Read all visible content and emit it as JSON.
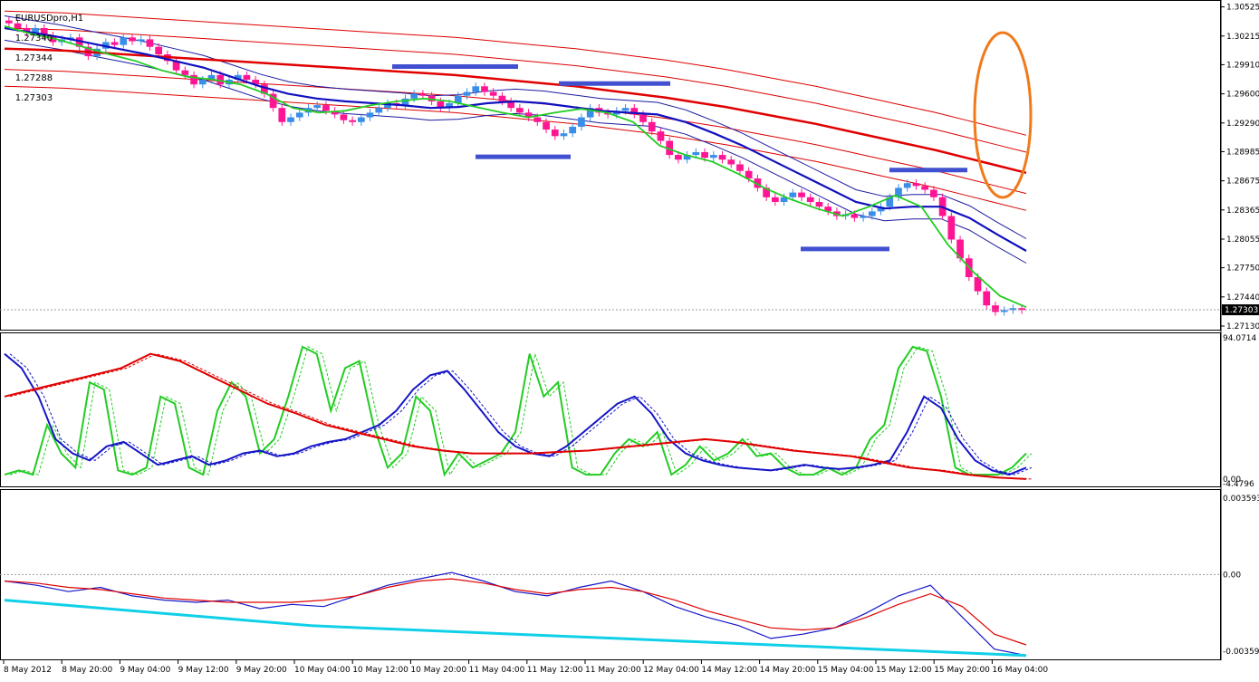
{
  "ohlc_header": {
    "symbol": "EURUSDpro,H1",
    "open": "1.27340",
    "high": "1.27344",
    "low": "1.27288",
    "close": "1.27303"
  },
  "colors": {
    "bull_candle": "#3a8ee8",
    "bear_candle": "#ff1493",
    "ema_fast": "#22cc22",
    "ema_mid": "#1010c0",
    "ema_slow": "#e00000",
    "envelope": "#dd0000",
    "bollinger": "#1a1aa0",
    "level_line": "#4050d0",
    "highlight_ellipse": "#f07a1a",
    "stoch_main": "#22cc22",
    "stoch_mid": "#1515c8",
    "stoch_slow": "#e00000",
    "macd_red": "#e00000",
    "macd_blue": "#1515c8",
    "macd_cyan": "#10d0e8"
  },
  "chart_data": [
    {
      "type": "line",
      "title": "",
      "ylim": [
        1.2713,
        1.3055
      ],
      "y_ticks": [
        "1.30525",
        "1.30215",
        "1.29910",
        "1.29600",
        "1.29290",
        "1.28985",
        "1.28675",
        "1.28365",
        "1.28055",
        "1.27750",
        "1.27440",
        "1.27130"
      ],
      "current_price_label": "1.27303",
      "x_tick_labels": [
        "8 May 2012",
        "8 May 20:00",
        "9 May 04:00",
        "9 May 12:00",
        "9 May 20:00",
        "10 May 04:00",
        "10 May 12:00",
        "10 May 20:00",
        "11 May 04:00",
        "11 May 12:00",
        "11 May 20:00",
        "12 May 04:00",
        "14 May 12:00",
        "14 May 20:00",
        "15 May 04:00",
        "15 May 12:00",
        "15 May 20:00",
        "16 May 04:00"
      ],
      "candles_close": [
        1.3035,
        1.303,
        1.3025,
        1.303,
        1.3022,
        1.3015,
        1.3018,
        1.302,
        1.301,
        1.3,
        1.3008,
        1.3015,
        1.3012,
        1.302,
        1.3016,
        1.3018,
        1.301,
        1.3002,
        1.2995,
        1.2985,
        1.298,
        1.297,
        1.2975,
        1.298,
        1.297,
        1.2975,
        1.298,
        1.2975,
        1.297,
        1.296,
        1.2945,
        1.293,
        1.2935,
        1.294,
        1.2945,
        1.2948,
        1.2942,
        1.2938,
        1.2932,
        1.293,
        1.2935,
        1.294,
        1.2945,
        1.295,
        1.2948,
        1.2955,
        1.296,
        1.2958,
        1.2952,
        1.2945,
        1.295,
        1.2958,
        1.2962,
        1.2968,
        1.2962,
        1.2958,
        1.2952,
        1.2945,
        1.294,
        1.2935,
        1.293,
        1.2922,
        1.2915,
        1.2918,
        1.2925,
        1.2935,
        1.2945,
        1.294,
        1.2938,
        1.2942,
        1.2945,
        1.2938,
        1.293,
        1.292,
        1.291,
        1.2895,
        1.289,
        1.2895,
        1.2898,
        1.2892,
        1.2895,
        1.289,
        1.2885,
        1.2878,
        1.287,
        1.286,
        1.285,
        1.2845,
        1.285,
        1.2855,
        1.285,
        1.2845,
        1.284,
        1.2835,
        1.283,
        1.2832,
        1.2828,
        1.283,
        1.2835,
        1.284,
        1.285,
        1.286,
        1.2865,
        1.2862,
        1.2858,
        1.285,
        1.283,
        1.2805,
        1.2785,
        1.2765,
        1.275,
        1.2735,
        1.2728,
        1.273,
        1.2732,
        1.273
      ],
      "series": [
        {
          "key": "ema_slow",
          "values": [
            1.3008,
            1.3007,
            1.3006,
            1.3004,
            1.3002,
            1.3,
            1.2998,
            1.2996,
            1.2994,
            1.2992,
            1.299,
            1.2988,
            1.2986,
            1.2984,
            1.2982,
            1.298,
            1.2977,
            1.2974,
            1.2971,
            1.2968,
            1.2964,
            1.296,
            1.2956,
            1.2951,
            1.2946,
            1.294,
            1.2934,
            1.2928,
            1.2921,
            1.2914,
            1.2907,
            1.29,
            1.2892,
            1.2884,
            1.2876
          ]
        },
        {
          "key": "ema_mid",
          "values": [
            1.303,
            1.3025,
            1.302,
            1.3014,
            1.3008,
            1.3002,
            1.2995,
            1.2988,
            1.2978,
            1.2968,
            1.296,
            1.2955,
            1.2952,
            1.295,
            1.2948,
            1.2945,
            1.2946,
            1.295,
            1.2952,
            1.295,
            1.2946,
            1.2942,
            1.294,
            1.2938,
            1.293,
            1.2918,
            1.2905,
            1.289,
            1.2875,
            1.286,
            1.2845,
            1.2838,
            1.284,
            1.284,
            1.2828,
            1.281,
            1.2793
          ]
        },
        {
          "key": "ema_fast",
          "values": [
            1.3032,
            1.3024,
            1.3018,
            1.301,
            1.3002,
            1.2995,
            1.2985,
            1.2978,
            1.2975,
            1.297,
            1.296,
            1.2945,
            1.294,
            1.2942,
            1.2948,
            1.2952,
            1.2955,
            1.2952,
            1.2946,
            1.294,
            1.2935,
            1.294,
            1.2944,
            1.294,
            1.293,
            1.2905,
            1.2895,
            1.2888,
            1.2875,
            1.286,
            1.2848,
            1.2838,
            1.283,
            1.284,
            1.2852,
            1.284,
            1.28,
            1.277,
            1.2745,
            1.2733
          ]
        }
      ]
    },
    {
      "type": "line",
      "title": "",
      "y_ticks": [
        "94.0714",
        "0.00",
        "-4.4796"
      ],
      "series": [
        {
          "key": "stoch_main",
          "values": [
            5,
            8,
            5,
            40,
            20,
            10,
            70,
            65,
            8,
            5,
            10,
            60,
            55,
            10,
            5,
            50,
            70,
            60,
            20,
            30,
            60,
            95,
            90,
            50,
            80,
            85,
            40,
            10,
            20,
            60,
            50,
            5,
            20,
            10,
            15,
            20,
            35,
            90,
            60,
            70,
            10,
            5,
            5,
            20,
            30,
            25,
            35,
            5,
            12,
            25,
            15,
            20,
            30,
            18,
            20,
            10,
            5,
            5,
            10,
            5,
            10,
            30,
            40,
            80,
            95,
            92,
            60,
            10,
            5,
            5,
            5,
            10,
            20
          ]
        },
        {
          "key": "stoch_mid",
          "values": [
            90,
            80,
            60,
            30,
            20,
            15,
            25,
            28,
            20,
            12,
            15,
            18,
            12,
            15,
            20,
            22,
            18,
            20,
            25,
            28,
            30,
            35,
            40,
            50,
            65,
            75,
            78,
            65,
            50,
            35,
            25,
            20,
            18,
            25,
            35,
            45,
            55,
            60,
            48,
            30,
            20,
            15,
            12,
            10,
            9,
            8,
            10,
            12,
            10,
            9,
            10,
            12,
            15,
            35,
            60,
            52,
            30,
            15,
            8,
            5,
            10
          ]
        },
        {
          "key": "stoch_slow",
          "values": [
            60,
            65,
            70,
            75,
            80,
            90,
            85,
            75,
            65,
            55,
            48,
            40,
            35,
            30,
            25,
            22,
            20,
            20,
            20,
            21,
            22,
            24,
            26,
            28,
            30,
            28,
            25,
            22,
            20,
            18,
            14,
            10,
            8,
            5,
            3,
            2
          ]
        }
      ]
    },
    {
      "type": "line",
      "title": "",
      "y_ticks": [
        "0.003593",
        "0.00",
        "-0.003599"
      ],
      "series": [
        {
          "key": "macd_blue",
          "values": [
            -0.0003,
            -0.0005,
            -0.0008,
            -0.0006,
            -0.001,
            -0.0012,
            -0.0013,
            -0.0012,
            -0.0016,
            -0.0014,
            -0.0015,
            -0.001,
            -0.0005,
            -0.0002,
            0.0001,
            -0.0003,
            -0.0008,
            -0.001,
            -0.0006,
            -0.0003,
            -0.0008,
            -0.0015,
            -0.002,
            -0.0024,
            -0.003,
            -0.0028,
            -0.0025,
            -0.0018,
            -0.001,
            -0.0005,
            -0.002,
            -0.0035,
            -0.0038
          ]
        },
        {
          "key": "macd_red",
          "values": [
            -0.0003,
            -0.0004,
            -0.0006,
            -0.0007,
            -0.0009,
            -0.0011,
            -0.0012,
            -0.0013,
            -0.0013,
            -0.0013,
            -0.0012,
            -0.001,
            -0.0006,
            -0.0003,
            -0.0002,
            -0.0004,
            -0.0007,
            -0.0009,
            -0.0007,
            -0.0006,
            -0.0008,
            -0.0012,
            -0.0017,
            -0.0021,
            -0.0025,
            -0.0026,
            -0.0025,
            -0.002,
            -0.0014,
            -0.0009,
            -0.0015,
            -0.0028,
            -0.0033
          ]
        },
        {
          "key": "macd_cyan",
          "values": [
            -0.0012,
            -0.0014,
            -0.0016,
            -0.0018,
            -0.002,
            -0.0022,
            -0.0024,
            -0.0025,
            -0.0026,
            -0.0027,
            -0.0028,
            -0.0029,
            -0.003,
            -0.0031,
            -0.0032,
            -0.0033,
            -0.0034,
            -0.0035,
            -0.0036,
            -0.0037,
            -0.0038
          ]
        }
      ]
    }
  ]
}
